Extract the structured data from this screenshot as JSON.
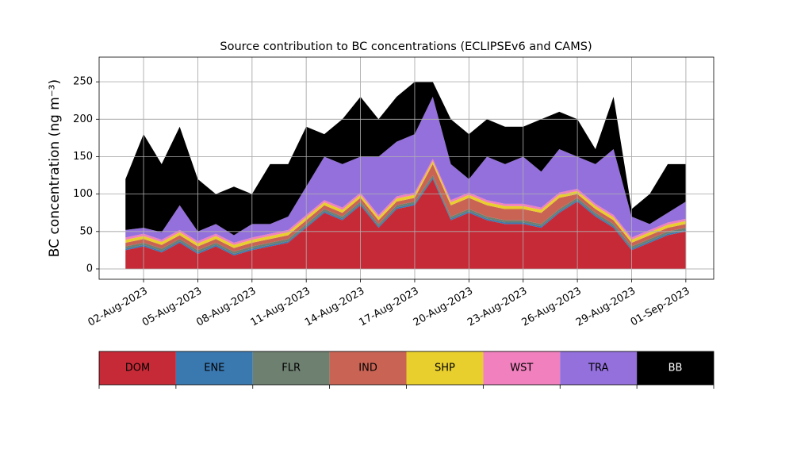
{
  "chart_data": {
    "type": "stacked-area",
    "title": "Source contribution to BC concentrations (ECLIPSEv6 and CAMS)",
    "y_label": "BC concentration (ng m⁻³)",
    "x": [
      "2023-08-01",
      "2023-08-02",
      "2023-08-03",
      "2023-08-04",
      "2023-08-05",
      "2023-08-06",
      "2023-08-07",
      "2023-08-08",
      "2023-08-09",
      "2023-08-10",
      "2023-08-11",
      "2023-08-12",
      "2023-08-13",
      "2023-08-14",
      "2023-08-15",
      "2023-08-16",
      "2023-08-17",
      "2023-08-18",
      "2023-08-19",
      "2023-08-20",
      "2023-08-21",
      "2023-08-22",
      "2023-08-23",
      "2023-08-24",
      "2023-08-25",
      "2023-08-26",
      "2023-08-27",
      "2023-08-28",
      "2023-08-29",
      "2023-08-30",
      "2023-08-31",
      "2023-09-01"
    ],
    "series": [
      {
        "name": "DOM",
        "color": "#c62a37",
        "values": [
          25,
          30,
          22,
          35,
          20,
          30,
          18,
          25,
          30,
          35,
          55,
          75,
          65,
          85,
          55,
          80,
          85,
          120,
          65,
          75,
          65,
          60,
          60,
          55,
          75,
          90,
          70,
          55,
          25,
          35,
          45,
          50
        ]
      },
      {
        "name": "ENE",
        "color": "#3a78b0",
        "values": [
          2,
          2,
          2,
          2,
          2,
          2,
          2,
          2,
          2,
          2,
          2,
          2,
          2,
          2,
          2,
          2,
          2,
          2,
          2,
          2,
          2,
          2,
          2,
          2,
          2,
          2,
          2,
          2,
          2,
          2,
          2,
          2
        ]
      },
      {
        "name": "FLR",
        "color": "#6e8070",
        "values": [
          3,
          3,
          3,
          3,
          3,
          3,
          3,
          3,
          3,
          3,
          3,
          3,
          3,
          3,
          3,
          3,
          3,
          3,
          3,
          3,
          3,
          3,
          3,
          3,
          3,
          3,
          3,
          3,
          3,
          3,
          3,
          3
        ]
      },
      {
        "name": "IND",
        "color": "#c96455",
        "values": [
          5,
          5,
          5,
          5,
          5,
          5,
          5,
          5,
          5,
          5,
          5,
          5,
          5,
          5,
          5,
          5,
          5,
          15,
          15,
          15,
          15,
          15,
          15,
          15,
          15,
          5,
          5,
          5,
          5,
          5,
          5,
          5
        ]
      },
      {
        "name": "SHP",
        "color": "#e8cf2d",
        "values": [
          4,
          4,
          4,
          4,
          4,
          4,
          4,
          4,
          4,
          4,
          4,
          4,
          4,
          4,
          4,
          4,
          4,
          4,
          4,
          4,
          4,
          4,
          4,
          4,
          4,
          4,
          4,
          4,
          4,
          4,
          4,
          4
        ]
      },
      {
        "name": "WST",
        "color": "#f081be",
        "values": [
          3,
          3,
          3,
          3,
          3,
          3,
          3,
          3,
          3,
          3,
          3,
          3,
          3,
          3,
          3,
          3,
          3,
          3,
          3,
          3,
          3,
          3,
          3,
          3,
          3,
          3,
          3,
          3,
          3,
          3,
          3,
          3
        ]
      },
      {
        "name": "TRA",
        "color": "#9370db",
        "values": [
          10,
          8,
          10,
          33,
          13,
          13,
          10,
          18,
          13,
          18,
          38,
          58,
          58,
          48,
          78,
          73,
          78,
          83,
          48,
          18,
          58,
          53,
          63,
          48,
          58,
          43,
          53,
          88,
          28,
          8,
          13,
          23
        ]
      },
      {
        "name": "BB",
        "color": "#000000",
        "values": [
          68,
          125,
          91,
          105,
          70,
          40,
          65,
          40,
          80,
          70,
          80,
          30,
          60,
          80,
          50,
          60,
          70,
          20,
          60,
          60,
          50,
          50,
          40,
          70,
          50,
          50,
          20,
          70,
          10,
          40,
          65,
          50
        ]
      }
    ],
    "xlim": [
      "2023-07-30T13:00:00Z",
      "2023-09-02T13:00:00Z"
    ],
    "xticks": [
      {
        "value": "2023-08-02",
        "label": "02-Aug-2023"
      },
      {
        "value": "2023-08-05",
        "label": "05-Aug-2023"
      },
      {
        "value": "2023-08-08",
        "label": "08-Aug-2023"
      },
      {
        "value": "2023-08-11",
        "label": "11-Aug-2023"
      },
      {
        "value": "2023-08-14",
        "label": "14-Aug-2023"
      },
      {
        "value": "2023-08-17",
        "label": "17-Aug-2023"
      },
      {
        "value": "2023-08-20",
        "label": "20-Aug-2023"
      },
      {
        "value": "2023-08-23",
        "label": "23-Aug-2023"
      },
      {
        "value": "2023-08-26",
        "label": "26-Aug-2023"
      },
      {
        "value": "2023-08-29",
        "label": "29-Aug-2023"
      },
      {
        "value": "2023-09-01",
        "label": "01-Sep-2023"
      }
    ],
    "ylim": [
      -13.8,
      283
    ],
    "yticks": [
      0,
      50,
      100,
      150,
      200,
      250
    ],
    "grid": true
  }
}
